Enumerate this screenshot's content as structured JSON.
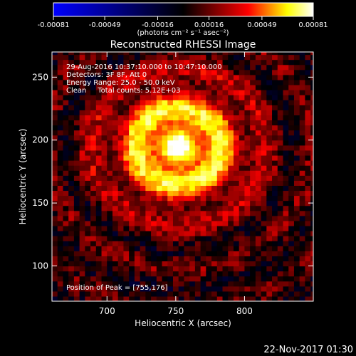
{
  "chart_data": {
    "type": "heatmap",
    "title": "Reconstructed RHESSI Image",
    "xlabel": "Heliocentric X (arcsec)",
    "ylabel": "Heliocentric Y (arcsec)",
    "xlim": [
      660,
      850
    ],
    "ylim": [
      72,
      270
    ],
    "x_ticks": [
      700,
      750,
      800
    ],
    "y_ticks": [
      100,
      150,
      200,
      250
    ],
    "colorbar": {
      "range": [
        -0.00081,
        0.00081
      ],
      "tick_values": [
        -0.00081,
        -0.00049,
        -0.00016,
        0.00016,
        0.00049,
        0.00081
      ],
      "tick_labels": [
        "-0.00081",
        "-0.00049",
        "-0.00016",
        "0.00016",
        "0.00049",
        "0.00081"
      ],
      "unit_label": "(photons cm⁻² s⁻¹ asec⁻²)",
      "colormap": [
        "#0000ff",
        "#000000",
        "#ff0000",
        "#ffff00",
        "#ffffff"
      ]
    },
    "annotations": [
      "29-Aug-2016 10:37:10.000 to 10:47:10.000",
      "Detectors: 3F 8F, Att 0",
      "Energy Range: 25.0 - 50.0 keV",
      "Clean     Total counts: 5.12E+03"
    ],
    "peak_label": "Position of Peak = [755,176]",
    "peak_position": [
      755,
      176
    ],
    "source_center": [
      752,
      195
    ]
  },
  "footer": {
    "timestamp": "22-Nov-2017 01:30"
  }
}
